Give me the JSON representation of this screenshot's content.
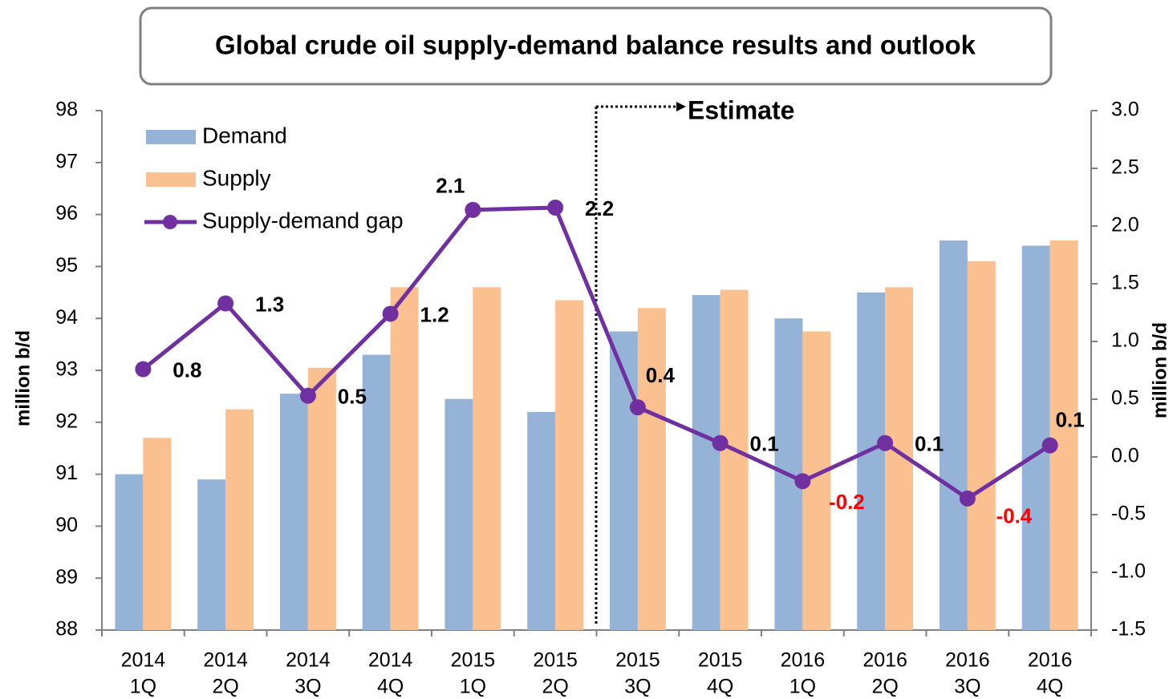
{
  "chart_data": {
    "type": "bar-line",
    "title": "Global crude oil supply-demand balance results and outlook",
    "ylabel": "million b/d",
    "y2label": "million b/d",
    "annotation": "Estimate",
    "categories": [
      [
        "2014",
        "1Q"
      ],
      [
        "2014",
        "2Q"
      ],
      [
        "2014",
        "3Q"
      ],
      [
        "2014",
        "4Q"
      ],
      [
        "2015",
        "1Q"
      ],
      [
        "2015",
        "2Q"
      ],
      [
        "2015",
        "3Q"
      ],
      [
        "2015",
        "4Q"
      ],
      [
        "2016",
        "1Q"
      ],
      [
        "2016",
        "2Q"
      ],
      [
        "2016",
        "3Q"
      ],
      [
        "2016",
        "4Q"
      ]
    ],
    "series": [
      {
        "name": "Demand",
        "type": "bar",
        "color": "#95b3d7",
        "values": [
          91.0,
          90.9,
          92.55,
          93.3,
          92.45,
          92.2,
          93.75,
          94.45,
          94.0,
          94.5,
          95.5,
          95.4
        ]
      },
      {
        "name": "Supply",
        "type": "bar",
        "color": "#fac090",
        "values": [
          91.7,
          92.25,
          93.05,
          94.6,
          94.6,
          94.35,
          94.2,
          94.55,
          93.75,
          94.6,
          95.1,
          95.5
        ]
      },
      {
        "name": "Supply-demand gap",
        "type": "line",
        "axis": "y2",
        "color": "#7030a0",
        "values": [
          0.76,
          1.33,
          0.53,
          1.24,
          2.14,
          2.16,
          0.43,
          0.12,
          -0.21,
          0.12,
          -0.36,
          0.1
        ],
        "value_labels": [
          "0.8",
          "1.3",
          "0.5",
          "1.2",
          "2.1",
          "2.2",
          "0.4",
          "0.1",
          "-0.2",
          "0.1",
          "-0.4",
          "0.1"
        ]
      }
    ],
    "ylim": [
      88,
      98
    ],
    "yticks": [
      88,
      89,
      90,
      91,
      92,
      93,
      94,
      95,
      96,
      97,
      98
    ],
    "y2lim": [
      -1.5,
      3.0
    ],
    "y2ticks": [
      {
        "value": -1.5,
        "label": "-1.5"
      },
      {
        "value": -1.0,
        "label": "-1.0"
      },
      {
        "value": -0.5,
        "label": "-0.5"
      },
      {
        "value": 0,
        "label": "0.0"
      },
      {
        "value": 0.5,
        "label": "0.5"
      },
      {
        "value": 1.0,
        "label": "1.0"
      },
      {
        "value": 1.5,
        "label": "1.5"
      },
      {
        "value": 2.0,
        "label": "2.0"
      },
      {
        "value": 2.5,
        "label": "2.5"
      },
      {
        "value": 3.0,
        "label": "3.0"
      }
    ],
    "negative_color": "#ff0000",
    "legend": "upper left",
    "grid": false
  }
}
